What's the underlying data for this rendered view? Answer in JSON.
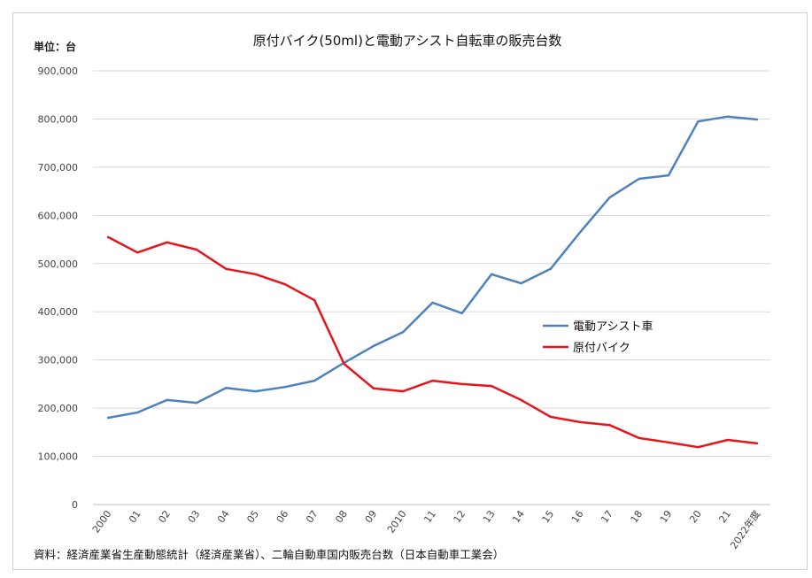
{
  "chart_data": {
    "type": "line",
    "title": "原付バイク(50ml)と電動アシスト自転車の販売台数",
    "unit_label": "単位：台",
    "source": "資料：経済産業省生産動態統計（経済産業省）、二輪自動車国内販売台数（日本自動車工業会）",
    "xlabel": "",
    "ylabel": "",
    "ylim": [
      0,
      900000
    ],
    "yticks": [
      0,
      100000,
      200000,
      300000,
      400000,
      500000,
      600000,
      700000,
      800000,
      900000
    ],
    "ytick_labels": [
      "0",
      "100,000",
      "200,000",
      "300,000",
      "400,000",
      "500,000",
      "600,000",
      "700,000",
      "800,000",
      "900,000"
    ],
    "categories": [
      "2000",
      "01",
      "02",
      "03",
      "04",
      "05",
      "06",
      "07",
      "08",
      "09",
      "2010",
      "11",
      "12",
      "13",
      "14",
      "15",
      "16",
      "17",
      "18",
      "19",
      "20",
      "21",
      "2022年度"
    ],
    "grid": true,
    "legend_position": "center-right",
    "series": [
      {
        "name": "電動アシスト車",
        "color": "#4f81bd",
        "values": [
          180000,
          191000,
          217000,
          211000,
          242000,
          235000,
          244000,
          257000,
          294000,
          329000,
          358000,
          419000,
          397000,
          478000,
          459000,
          489000,
          565000,
          637000,
          676000,
          683000,
          795000,
          805000,
          799000
        ]
      },
      {
        "name": "原付バイク",
        "color": "#e8141b",
        "values": [
          555000,
          523000,
          544000,
          529000,
          489000,
          478000,
          457000,
          424000,
          292000,
          241000,
          235000,
          257000,
          250000,
          246000,
          217000,
          182000,
          171000,
          165000,
          138000,
          129000,
          119000,
          134000,
          127000
        ]
      }
    ]
  }
}
